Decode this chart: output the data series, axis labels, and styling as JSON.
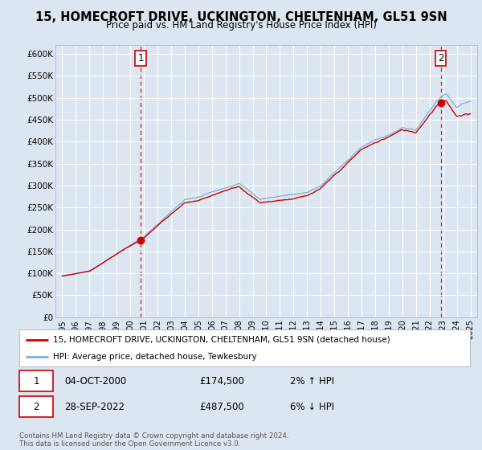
{
  "title": "15, HOMECROFT DRIVE, UCKINGTON, CHELTENHAM, GL51 9SN",
  "subtitle": "Price paid vs. HM Land Registry's House Price Index (HPI)",
  "background_color": "#dce6f1",
  "plot_bg_color": "#dce6f1",
  "grid_color": "#ffffff",
  "hpi_color": "#7ab0d4",
  "price_color": "#cc0000",
  "sale1_year": 2000.75,
  "sale1_price": 174500,
  "sale2_year": 2022.75,
  "sale2_price": 487500,
  "ylim": [
    0,
    620000
  ],
  "yticks": [
    0,
    50000,
    100000,
    150000,
    200000,
    250000,
    300000,
    350000,
    400000,
    450000,
    500000,
    550000,
    600000
  ],
  "ytick_labels": [
    "£0",
    "£50K",
    "£100K",
    "£150K",
    "£200K",
    "£250K",
    "£300K",
    "£350K",
    "£400K",
    "£450K",
    "£500K",
    "£550K",
    "£600K"
  ],
  "xmin": 1994.5,
  "xmax": 2025.5,
  "legend_label1": "15, HOMECROFT DRIVE, UCKINGTON, CHELTENHAM, GL51 9SN (detached house)",
  "legend_label2": "HPI: Average price, detached house, Tewkesbury",
  "note1_date": "04-OCT-2000",
  "note1_price": "£174,500",
  "note1_hpi": "2% ↑ HPI",
  "note2_date": "28-SEP-2022",
  "note2_price": "£487,500",
  "note2_hpi": "6% ↓ HPI",
  "footer": "Contains HM Land Registry data © Crown copyright and database right 2024.\nThis data is licensed under the Open Government Licence v3.0."
}
